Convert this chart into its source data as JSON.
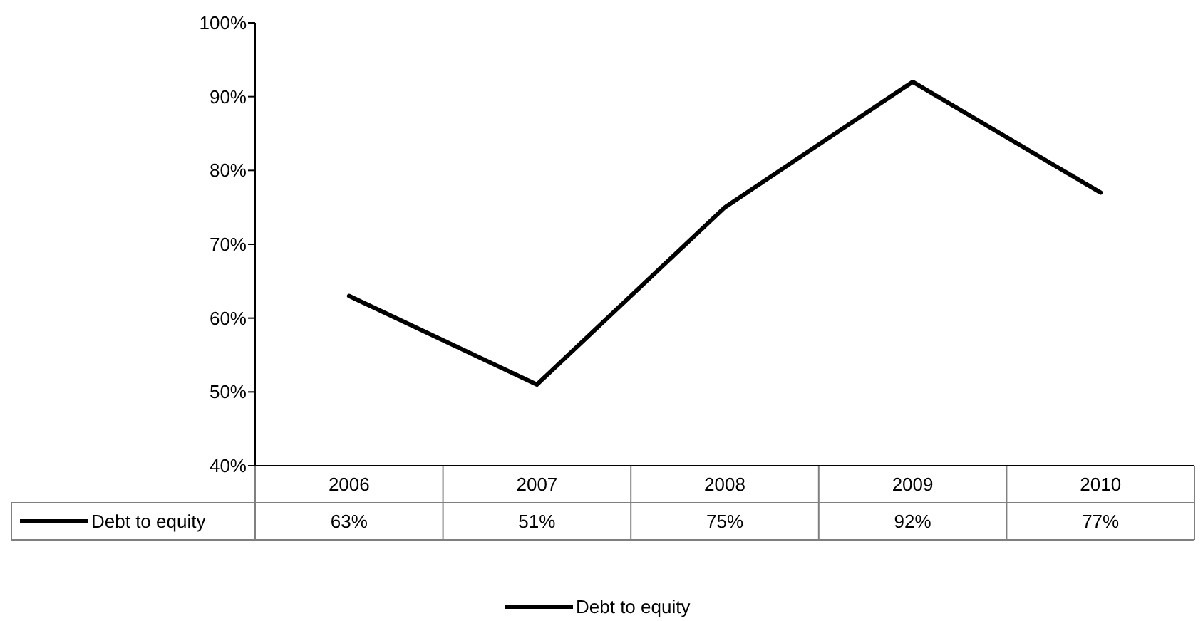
{
  "chart_data": {
    "type": "line",
    "categories": [
      "2006",
      "2007",
      "2008",
      "2009",
      "2010"
    ],
    "series": [
      {
        "name": "Debt to equity",
        "color": "#000000",
        "values": [
          63,
          51,
          75,
          92,
          77
        ],
        "value_labels": [
          "63%",
          "51%",
          "75%",
          "92%",
          "77%"
        ]
      }
    ],
    "ylim": [
      40,
      100
    ],
    "yticks": [
      {
        "value": 40,
        "label": "40%"
      },
      {
        "value": 50,
        "label": "50%"
      },
      {
        "value": 60,
        "label": "60%"
      },
      {
        "value": 70,
        "label": "70%"
      },
      {
        "value": 80,
        "label": "80%"
      },
      {
        "value": 90,
        "label": "90%"
      },
      {
        "value": 100,
        "label": "100%"
      }
    ],
    "grid": false,
    "legend": "bottom",
    "marker": "none",
    "line_style": "solid"
  }
}
